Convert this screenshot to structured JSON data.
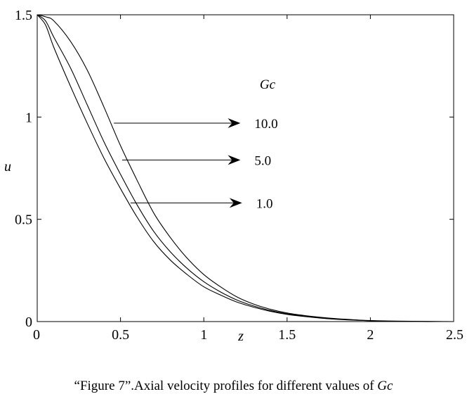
{
  "chart_data": {
    "type": "line",
    "xlabel": "z",
    "ylabel": "u",
    "xlim": [
      0,
      2.5
    ],
    "ylim": [
      0,
      1.5
    ],
    "x_ticks": [
      0,
      0.5,
      1,
      1.5,
      2,
      2.5
    ],
    "y_ticks": [
      0,
      0.5,
      1,
      1.5
    ],
    "x_tick_labels": [
      "0",
      "0.5",
      "1",
      "1.5",
      "2",
      "2.5"
    ],
    "y_tick_labels": [
      "0",
      "0.5",
      "1",
      "1.5"
    ],
    "grid": false,
    "line_color": "#000000",
    "legend_title": "Gc",
    "series": [
      {
        "name": "10.0",
        "x": [
          0,
          0.05,
          0.1,
          0.2,
          0.3,
          0.4,
          0.5,
          0.6,
          0.7,
          0.8,
          0.9,
          1.0,
          1.1,
          1.2,
          1.3,
          1.4,
          1.5,
          1.6,
          1.7,
          1.8,
          1.9,
          2.0,
          2.1,
          2.2,
          2.3,
          2.4,
          2.5
        ],
        "y": [
          1.5,
          1.49,
          1.47,
          1.37,
          1.23,
          1.05,
          0.86,
          0.69,
          0.53,
          0.41,
          0.31,
          0.23,
          0.17,
          0.12,
          0.085,
          0.06,
          0.042,
          0.03,
          0.021,
          0.014,
          0.009,
          0.005,
          0.003,
          0.002,
          0.001,
          0.0005,
          0.0
        ]
      },
      {
        "name": "5.0",
        "x": [
          0,
          0.05,
          0.1,
          0.2,
          0.3,
          0.4,
          0.5,
          0.6,
          0.7,
          0.8,
          0.9,
          1.0,
          1.1,
          1.2,
          1.3,
          1.4,
          1.5,
          1.6,
          1.7,
          1.8,
          1.9,
          2.0,
          2.1,
          2.2,
          2.3,
          2.4,
          2.5
        ],
        "y": [
          1.5,
          1.47,
          1.39,
          1.24,
          1.06,
          0.88,
          0.72,
          0.57,
          0.44,
          0.34,
          0.26,
          0.195,
          0.145,
          0.105,
          0.076,
          0.054,
          0.038,
          0.027,
          0.018,
          0.012,
          0.008,
          0.004,
          0.002,
          0.001,
          0.0005,
          0.0,
          0.0
        ]
      },
      {
        "name": "1.0",
        "x": [
          0,
          0.05,
          0.1,
          0.2,
          0.3,
          0.4,
          0.5,
          0.6,
          0.7,
          0.8,
          0.9,
          1.0,
          1.1,
          1.2,
          1.3,
          1.4,
          1.5,
          1.6,
          1.7,
          1.8,
          1.9,
          2.0,
          2.1,
          2.2,
          2.3,
          2.4,
          2.5
        ],
        "y": [
          1.5,
          1.45,
          1.34,
          1.15,
          0.97,
          0.8,
          0.65,
          0.51,
          0.39,
          0.3,
          0.23,
          0.17,
          0.13,
          0.095,
          0.07,
          0.05,
          0.035,
          0.025,
          0.017,
          0.011,
          0.007,
          0.004,
          0.002,
          0.001,
          0.0,
          0.0,
          0.0
        ]
      }
    ],
    "annotations": [
      {
        "text": "10.0",
        "series": "10.0",
        "arrow_from": [
          0.46,
          0.97
        ],
        "arrow_to": [
          1.22,
          0.97
        ]
      },
      {
        "text": "5.0",
        "series": "5.0",
        "arrow_from": [
          0.51,
          0.79
        ],
        "arrow_to": [
          1.22,
          0.79
        ]
      },
      {
        "text": "1.0",
        "series": "1.0",
        "arrow_from": [
          0.56,
          0.58
        ],
        "arrow_to": [
          1.23,
          0.58
        ]
      }
    ]
  },
  "caption": {
    "prefix": "“Figure 7”.Axial velocity profiles for different values of ",
    "symbol": "Gc"
  }
}
